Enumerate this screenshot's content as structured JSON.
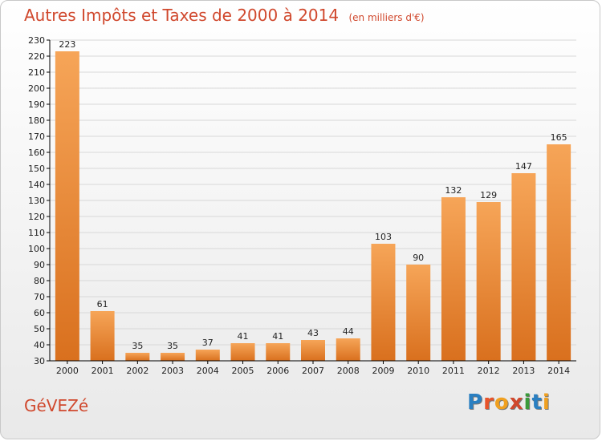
{
  "header": {
    "title": "Autres Impôts et Taxes de 2000 à 2014",
    "subtitle": "(en milliers d'€)"
  },
  "footer": {
    "commune": "GéVEZé",
    "logo_letters": [
      "P",
      "r",
      "o",
      "x",
      "i",
      "t",
      "i"
    ],
    "logo_colors": [
      "#2a7fc1",
      "#e8542a",
      "#f0a020",
      "#d0482d",
      "#3a9a3a",
      "#2a7fc1",
      "#f0a020"
    ]
  },
  "colors": {
    "bar_top": "#f6a558",
    "bar_bottom": "#d9701e",
    "axis": "#000000",
    "grid": "#d8d8d8",
    "title": "#d0482d"
  },
  "chart_data": {
    "type": "bar",
    "categories": [
      "2000",
      "2001",
      "2002",
      "2003",
      "2004",
      "2005",
      "2006",
      "2007",
      "2008",
      "2009",
      "2010",
      "2011",
      "2012",
      "2013",
      "2014"
    ],
    "values": [
      223,
      61,
      35,
      35,
      37,
      41,
      41,
      43,
      44,
      103,
      90,
      132,
      129,
      147,
      165
    ],
    "ylim": [
      30,
      230
    ],
    "ytick_step": 10,
    "grid": true,
    "data_labels": true
  }
}
